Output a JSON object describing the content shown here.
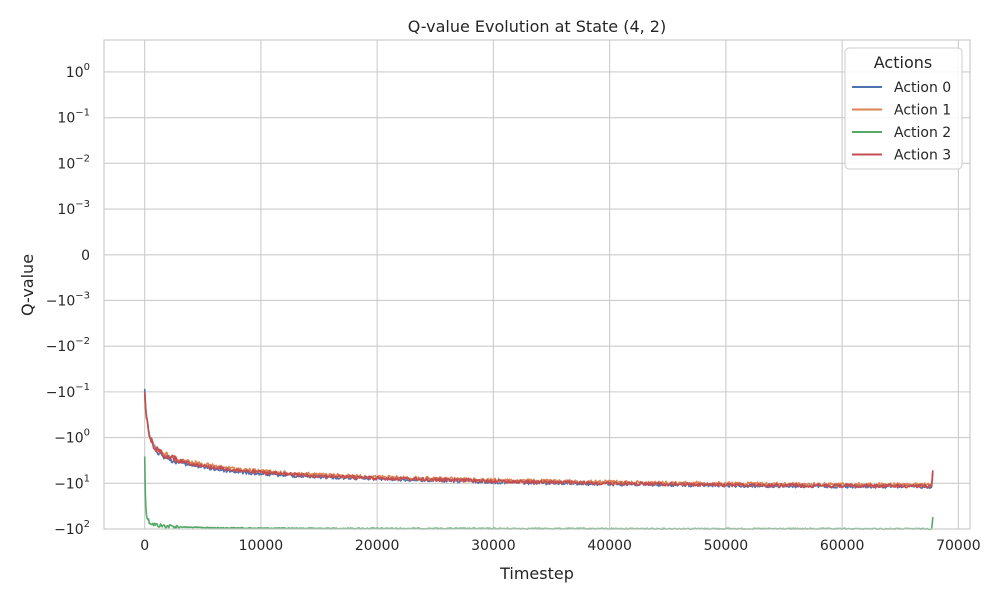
{
  "chart_data": {
    "type": "line",
    "title": "Q-value Evolution at State (4, 2)",
    "xlabel": "Timestep",
    "ylabel": "Q-value",
    "yscale": "symlog",
    "xlim": [
      -3500,
      71000
    ],
    "ylim": [
      -100,
      5
    ],
    "grid": true,
    "x_ticks": [
      {
        "value": 0,
        "label": "0"
      },
      {
        "value": 10000,
        "label": "10000"
      },
      {
        "value": 20000,
        "label": "20000"
      },
      {
        "value": 30000,
        "label": "30000"
      },
      {
        "value": 40000,
        "label": "40000"
      },
      {
        "value": 50000,
        "label": "50000"
      },
      {
        "value": 60000,
        "label": "60000"
      },
      {
        "value": 70000,
        "label": "70000"
      }
    ],
    "y_ticks": [
      {
        "value": 1,
        "prefix": "10",
        "exp": "0"
      },
      {
        "value": 0.1,
        "prefix": "10",
        "exp": "−1"
      },
      {
        "value": 0.01,
        "prefix": "10",
        "exp": "−2"
      },
      {
        "value": 0.001,
        "prefix": "10",
        "exp": "−3"
      },
      {
        "value": 0,
        "prefix": "0",
        "exp": ""
      },
      {
        "value": -0.001,
        "prefix": "−10",
        "exp": "−3"
      },
      {
        "value": -0.01,
        "prefix": "−10",
        "exp": "−2"
      },
      {
        "value": -0.1,
        "prefix": "−10",
        "exp": "−1"
      },
      {
        "value": -1,
        "prefix": "−10",
        "exp": "0"
      },
      {
        "value": -10,
        "prefix": "−10",
        "exp": "1"
      },
      {
        "value": -100,
        "prefix": "−10",
        "exp": "2"
      }
    ],
    "legend": {
      "title": "Actions",
      "placement": "top-right"
    },
    "series": [
      {
        "name": "Action 0",
        "color": "#4c72b0",
        "x": [
          0,
          150,
          400,
          700,
          1000,
          1500,
          2000,
          3000,
          4000,
          5000,
          6000,
          8000,
          10000,
          12000,
          15000,
          20000,
          25000,
          30000,
          35000,
          40000,
          45000,
          50000,
          55000,
          60000,
          65000,
          67700,
          67800
        ],
        "y": [
          -0.08,
          -0.3,
          -0.9,
          -1.4,
          -1.9,
          -2.4,
          -2.8,
          -3.5,
          -4.0,
          -4.4,
          -4.9,
          -5.6,
          -6.2,
          -6.6,
          -7.2,
          -7.9,
          -8.6,
          -9.3,
          -9.8,
          -10.3,
          -10.7,
          -11.1,
          -11.4,
          -11.6,
          -11.7,
          -11.8,
          -5.8
        ]
      },
      {
        "name": "Action 1",
        "color": "#dd8452",
        "x": [
          0,
          150,
          400,
          700,
          1000,
          1500,
          2000,
          3000,
          4000,
          5000,
          6000,
          8000,
          10000,
          12000,
          15000,
          20000,
          25000,
          30000,
          35000,
          40000,
          45000,
          50000,
          55000,
          60000,
          65000,
          67700,
          67800
        ],
        "y": [
          -0.1,
          -0.35,
          -0.85,
          -1.3,
          -1.7,
          -2.1,
          -2.5,
          -3.0,
          -3.4,
          -3.8,
          -4.2,
          -4.9,
          -5.4,
          -5.9,
          -6.5,
          -7.3,
          -7.9,
          -8.5,
          -9.0,
          -9.4,
          -9.8,
          -10.1,
          -10.4,
          -10.6,
          -10.7,
          -10.8,
          -5.5
        ]
      },
      {
        "name": "Action 2",
        "color": "#55a868",
        "x": [
          0,
          100,
          200,
          400,
          700,
          1000,
          1500,
          2000,
          3000,
          4000,
          6000,
          8000,
          10000,
          15000,
          20000,
          30000,
          40000,
          50000,
          60000,
          67700,
          67800
        ],
        "y": [
          -2.5,
          -30,
          -55,
          -70,
          -78,
          -82,
          -85,
          -87,
          -90,
          -92,
          -94,
          -95,
          -96,
          -97,
          -97.5,
          -98,
          -98.5,
          -98.8,
          -99,
          -99.2,
          -55
        ]
      },
      {
        "name": "Action 3",
        "color": "#c44e52",
        "x": [
          0,
          150,
          400,
          700,
          1000,
          1500,
          2000,
          3000,
          4000,
          5000,
          6000,
          8000,
          10000,
          12000,
          15000,
          20000,
          25000,
          30000,
          35000,
          40000,
          45000,
          50000,
          55000,
          60000,
          65000,
          67700,
          67800
        ],
        "y": [
          -0.09,
          -0.32,
          -0.88,
          -1.35,
          -1.8,
          -2.2,
          -2.6,
          -3.2,
          -3.7,
          -4.1,
          -4.5,
          -5.2,
          -5.8,
          -6.3,
          -6.9,
          -7.7,
          -8.3,
          -9.0,
          -9.5,
          -10.0,
          -10.4,
          -10.8,
          -11.1,
          -11.3,
          -11.4,
          -11.5,
          -5.2
        ]
      }
    ]
  }
}
